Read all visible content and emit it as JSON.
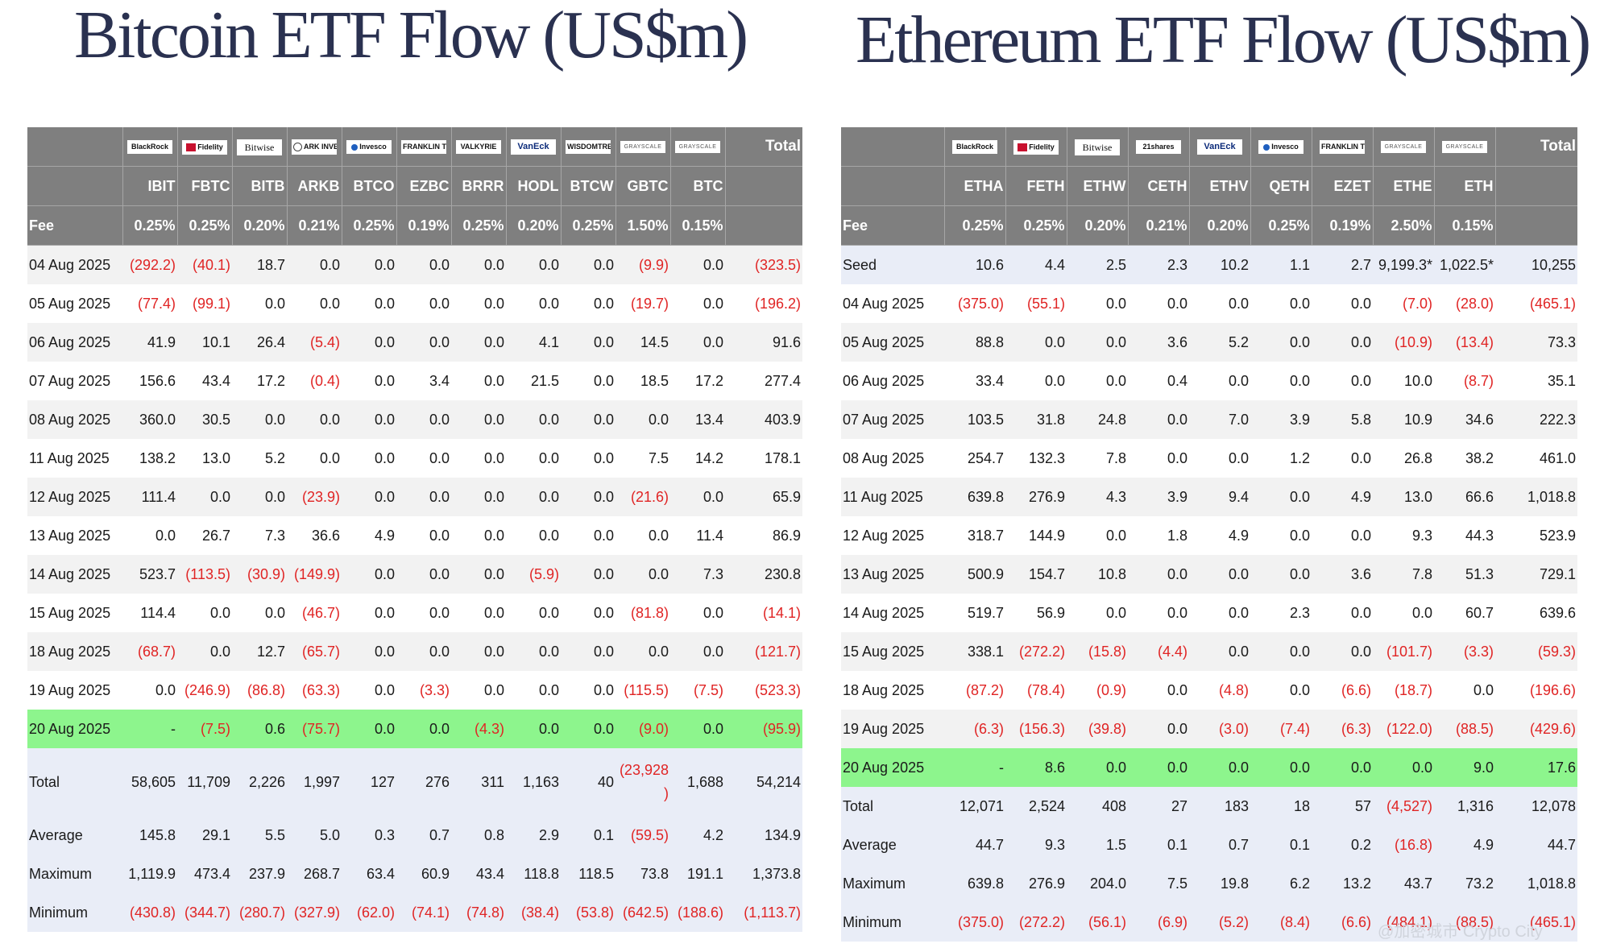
{
  "btc": {
    "title": "Bitcoin ETF Flow (US$m)",
    "issuers": [
      "BlackRock",
      "Fidelity",
      "Bitwise",
      "ARK INVEST",
      "Invesco",
      "FRANKLIN TEMPLETON",
      "VALKYRIE",
      "VanEck",
      "WISDOMTREE",
      "GRAYSCALE",
      "GRAYSCALE"
    ],
    "total_label": "Total",
    "tickers": [
      "IBIT",
      "FBTC",
      "BITB",
      "ARKB",
      "BTCO",
      "EZBC",
      "BRRR",
      "HODL",
      "BTCW",
      "GBTC",
      "BTC"
    ],
    "fee_label": "Fee",
    "fees": [
      "0.25%",
      "0.25%",
      "0.20%",
      "0.21%",
      "0.25%",
      "0.19%",
      "0.25%",
      "0.20%",
      "0.25%",
      "1.50%",
      "0.15%"
    ],
    "rows": [
      {
        "date": "04 Aug 2025",
        "values": [
          "(292.2)",
          "(40.1)",
          "18.7",
          "0.0",
          "0.0",
          "0.0",
          "0.0",
          "0.0",
          "0.0",
          "(9.9)",
          "0.0",
          "(323.5)"
        ]
      },
      {
        "date": "05 Aug 2025",
        "values": [
          "(77.4)",
          "(99.1)",
          "0.0",
          "0.0",
          "0.0",
          "0.0",
          "0.0",
          "0.0",
          "0.0",
          "(19.7)",
          "0.0",
          "(196.2)"
        ]
      },
      {
        "date": "06 Aug 2025",
        "values": [
          "41.9",
          "10.1",
          "26.4",
          "(5.4)",
          "0.0",
          "0.0",
          "0.0",
          "4.1",
          "0.0",
          "14.5",
          "0.0",
          "91.6"
        ]
      },
      {
        "date": "07 Aug 2025",
        "values": [
          "156.6",
          "43.4",
          "17.2",
          "(0.4)",
          "0.0",
          "3.4",
          "0.0",
          "21.5",
          "0.0",
          "18.5",
          "17.2",
          "277.4"
        ]
      },
      {
        "date": "08 Aug 2025",
        "values": [
          "360.0",
          "30.5",
          "0.0",
          "0.0",
          "0.0",
          "0.0",
          "0.0",
          "0.0",
          "0.0",
          "0.0",
          "13.4",
          "403.9"
        ]
      },
      {
        "date": "11 Aug 2025",
        "values": [
          "138.2",
          "13.0",
          "5.2",
          "0.0",
          "0.0",
          "0.0",
          "0.0",
          "0.0",
          "0.0",
          "7.5",
          "14.2",
          "178.1"
        ]
      },
      {
        "date": "12 Aug 2025",
        "values": [
          "111.4",
          "0.0",
          "0.0",
          "(23.9)",
          "0.0",
          "0.0",
          "0.0",
          "0.0",
          "0.0",
          "(21.6)",
          "0.0",
          "65.9"
        ]
      },
      {
        "date": "13 Aug 2025",
        "values": [
          "0.0",
          "26.7",
          "7.3",
          "36.6",
          "4.9",
          "0.0",
          "0.0",
          "0.0",
          "0.0",
          "0.0",
          "11.4",
          "86.9"
        ]
      },
      {
        "date": "14 Aug 2025",
        "values": [
          "523.7",
          "(113.5)",
          "(30.9)",
          "(149.9)",
          "0.0",
          "0.0",
          "0.0",
          "(5.9)",
          "0.0",
          "0.0",
          "7.3",
          "230.8"
        ]
      },
      {
        "date": "15 Aug 2025",
        "values": [
          "114.4",
          "0.0",
          "0.0",
          "(46.7)",
          "0.0",
          "0.0",
          "0.0",
          "0.0",
          "0.0",
          "(81.8)",
          "0.0",
          "(14.1)"
        ]
      },
      {
        "date": "18 Aug 2025",
        "values": [
          "(68.7)",
          "0.0",
          "12.7",
          "(65.7)",
          "0.0",
          "0.0",
          "0.0",
          "0.0",
          "0.0",
          "0.0",
          "0.0",
          "(121.7)"
        ]
      },
      {
        "date": "19 Aug 2025",
        "values": [
          "0.0",
          "(246.9)",
          "(86.8)",
          "(63.3)",
          "0.0",
          "(3.3)",
          "0.0",
          "0.0",
          "0.0",
          "(115.5)",
          "(7.5)",
          "(523.3)"
        ]
      },
      {
        "date": "20 Aug 2025",
        "values": [
          "-",
          "(7.5)",
          "0.6",
          "(75.7)",
          "0.0",
          "0.0",
          "(4.3)",
          "0.0",
          "0.0",
          "(9.0)",
          "0.0",
          "(95.9)"
        ]
      }
    ],
    "stats": [
      {
        "label": "Total",
        "values": [
          "58,605",
          "11,709",
          "2,226",
          "1,997",
          "127",
          "276",
          "311",
          "1,163",
          "40",
          "(23,928\n)",
          "1,688",
          "54,214"
        ]
      },
      {
        "label": "Average",
        "values": [
          "145.8",
          "29.1",
          "5.5",
          "5.0",
          "0.3",
          "0.7",
          "0.8",
          "2.9",
          "0.1",
          "(59.5)",
          "4.2",
          "134.9"
        ]
      },
      {
        "label": "Maximum",
        "values": [
          "1,119.9",
          "473.4",
          "237.9",
          "268.7",
          "63.4",
          "60.9",
          "43.4",
          "118.8",
          "118.5",
          "73.8",
          "191.1",
          "1,373.8"
        ]
      },
      {
        "label": "Minimum",
        "values": [
          "(430.8)",
          "(344.7)",
          "(280.7)",
          "(327.9)",
          "(62.0)",
          "(74.1)",
          "(74.8)",
          "(38.4)",
          "(53.8)",
          "(642.5)",
          "(188.6)",
          "(1,113.7)"
        ]
      }
    ]
  },
  "eth": {
    "title": "Ethereum ETF Flow (US$m)",
    "issuers": [
      "BlackRock",
      "Fidelity",
      "Bitwise",
      "21shares",
      "VanEck",
      "Invesco",
      "FRANKLIN TEMPLETON",
      "GRAYSCALE",
      "GRAYSCALE"
    ],
    "total_label": "Total",
    "tickers": [
      "ETHA",
      "FETH",
      "ETHW",
      "CETH",
      "ETHV",
      "QETH",
      "EZET",
      "ETHE",
      "ETH"
    ],
    "fee_label": "Fee",
    "fees": [
      "0.25%",
      "0.25%",
      "0.20%",
      "0.21%",
      "0.20%",
      "0.25%",
      "0.19%",
      "2.50%",
      "0.15%"
    ],
    "seed": {
      "label": "Seed",
      "values": [
        "10.6",
        "4.4",
        "2.5",
        "2.3",
        "10.2",
        "1.1",
        "2.7",
        "9,199.3*",
        "1,022.5*",
        "10,255"
      ]
    },
    "rows": [
      {
        "date": "04 Aug 2025",
        "values": [
          "(375.0)",
          "(55.1)",
          "0.0",
          "0.0",
          "0.0",
          "0.0",
          "0.0",
          "(7.0)",
          "(28.0)",
          "(465.1)"
        ]
      },
      {
        "date": "05 Aug 2025",
        "values": [
          "88.8",
          "0.0",
          "0.0",
          "3.6",
          "5.2",
          "0.0",
          "0.0",
          "(10.9)",
          "(13.4)",
          "73.3"
        ]
      },
      {
        "date": "06 Aug 2025",
        "values": [
          "33.4",
          "0.0",
          "0.0",
          "0.4",
          "0.0",
          "0.0",
          "0.0",
          "10.0",
          "(8.7)",
          "35.1"
        ]
      },
      {
        "date": "07 Aug 2025",
        "values": [
          "103.5",
          "31.8",
          "24.8",
          "0.0",
          "7.0",
          "3.9",
          "5.8",
          "10.9",
          "34.6",
          "222.3"
        ]
      },
      {
        "date": "08 Aug 2025",
        "values": [
          "254.7",
          "132.3",
          "7.8",
          "0.0",
          "0.0",
          "1.2",
          "0.0",
          "26.8",
          "38.2",
          "461.0"
        ]
      },
      {
        "date": "11 Aug 2025",
        "values": [
          "639.8",
          "276.9",
          "4.3",
          "3.9",
          "9.4",
          "0.0",
          "4.9",
          "13.0",
          "66.6",
          "1,018.8"
        ]
      },
      {
        "date": "12 Aug 2025",
        "values": [
          "318.7",
          "144.9",
          "0.0",
          "1.8",
          "4.9",
          "0.0",
          "0.0",
          "9.3",
          "44.3",
          "523.9"
        ]
      },
      {
        "date": "13 Aug 2025",
        "values": [
          "500.9",
          "154.7",
          "10.8",
          "0.0",
          "0.0",
          "0.0",
          "3.6",
          "7.8",
          "51.3",
          "729.1"
        ]
      },
      {
        "date": "14 Aug 2025",
        "values": [
          "519.7",
          "56.9",
          "0.0",
          "0.0",
          "0.0",
          "2.3",
          "0.0",
          "0.0",
          "60.7",
          "639.6"
        ]
      },
      {
        "date": "15 Aug 2025",
        "values": [
          "338.1",
          "(272.2)",
          "(15.8)",
          "(4.4)",
          "0.0",
          "0.0",
          "0.0",
          "(101.7)",
          "(3.3)",
          "(59.3)"
        ]
      },
      {
        "date": "18 Aug 2025",
        "values": [
          "(87.2)",
          "(78.4)",
          "(0.9)",
          "0.0",
          "(4.8)",
          "0.0",
          "(6.6)",
          "(18.7)",
          "0.0",
          "(196.6)"
        ]
      },
      {
        "date": "19 Aug 2025",
        "values": [
          "(6.3)",
          "(156.3)",
          "(39.8)",
          "0.0",
          "(3.0)",
          "(7.4)",
          "(6.3)",
          "(122.0)",
          "(88.5)",
          "(429.6)"
        ]
      },
      {
        "date": "20 Aug 2025",
        "values": [
          "-",
          "8.6",
          "0.0",
          "0.0",
          "0.0",
          "0.0",
          "0.0",
          "0.0",
          "9.0",
          "17.6"
        ]
      }
    ],
    "stats": [
      {
        "label": "Total",
        "values": [
          "12,071",
          "2,524",
          "408",
          "27",
          "183",
          "18",
          "57",
          "(4,527)",
          "1,316",
          "12,078"
        ]
      },
      {
        "label": "Average",
        "values": [
          "44.7",
          "9.3",
          "1.5",
          "0.1",
          "0.7",
          "0.1",
          "0.2",
          "(16.8)",
          "4.9",
          "44.7"
        ]
      },
      {
        "label": "Maximum",
        "values": [
          "639.8",
          "276.9",
          "204.0",
          "7.5",
          "19.8",
          "6.2",
          "13.2",
          "43.7",
          "73.2",
          "1,018.8"
        ]
      },
      {
        "label": "Minimum",
        "values": [
          "(375.0)",
          "(272.2)",
          "(56.1)",
          "(6.9)",
          "(5.2)",
          "(8.4)",
          "(6.6)",
          "(484.1)",
          "(88.5)",
          "(465.1)"
        ]
      }
    ]
  },
  "watermark": "@加密城市 Crypto City",
  "colors": {
    "header_bg": "#7f7f7f",
    "negative": "#e02424",
    "highlight_row": "#8df58d",
    "stats_bg": "#e9edf7",
    "title": "#2a3150"
  }
}
